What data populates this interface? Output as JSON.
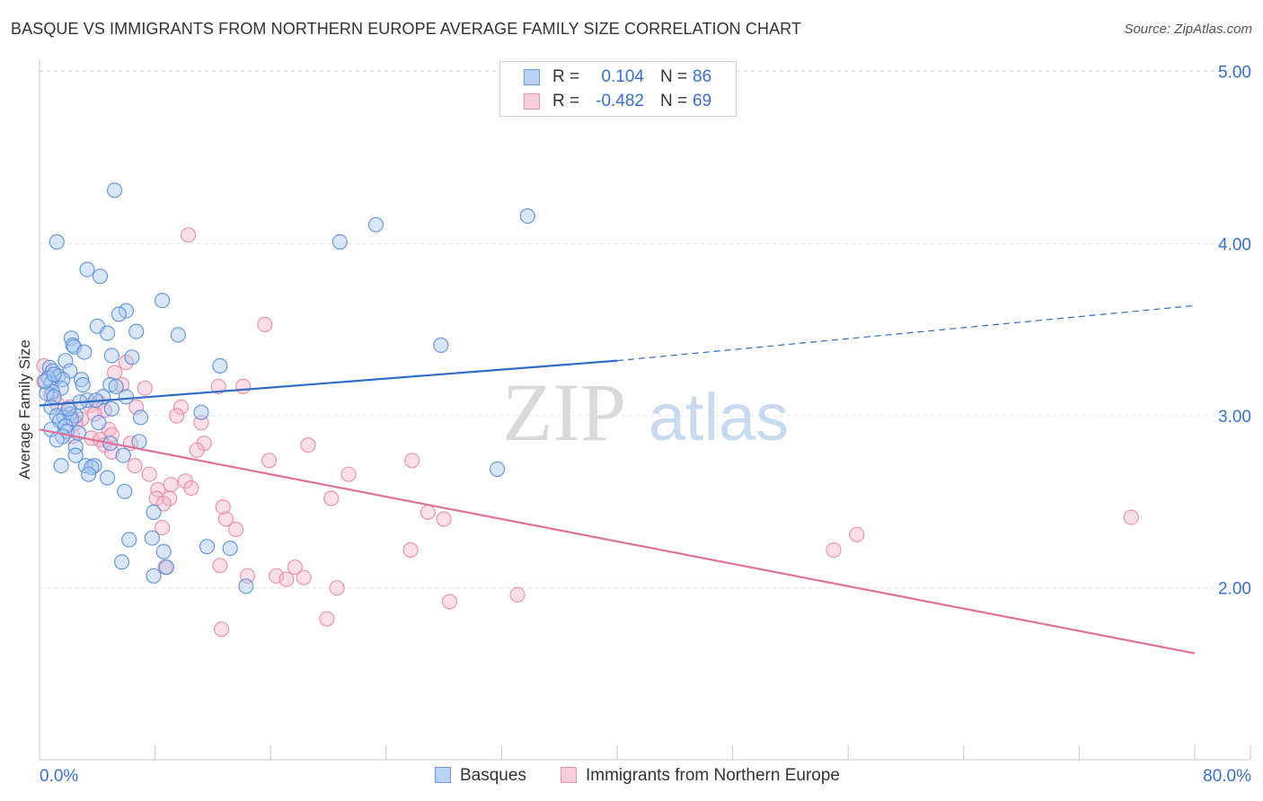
{
  "header": {
    "title": "BASQUE VS IMMIGRANTS FROM NORTHERN EUROPE AVERAGE FAMILY SIZE CORRELATION CHART",
    "source": "Source: ZipAtlas.com"
  },
  "watermark": {
    "zip": "ZIP",
    "atlas": "atlas"
  },
  "colors": {
    "basques_fill": "#a8c8f0",
    "basques_stroke": "#5a8fd8",
    "basques_line": "#2e6cc7",
    "immigrants_fill": "#f5b8cc",
    "immigrants_stroke": "#e88aa8",
    "immigrants_line": "#e0709a",
    "tick_label": "#3a6fd0",
    "grid": "#e2e2e2"
  },
  "legend_box": {
    "rows": [
      {
        "r_label": "R =",
        "r_value": "0.104",
        "n_label": "N =",
        "n_value": "86"
      },
      {
        "r_label": "R =",
        "r_value": "-0.482",
        "n_label": "N =",
        "n_value": "69"
      }
    ]
  },
  "bottom_legend": [
    "Basques",
    "Immigrants from Northern Europe"
  ],
  "chart_data": {
    "type": "scatter",
    "title": "BASQUE VS IMMIGRANTS FROM NORTHERN EUROPE AVERAGE FAMILY SIZE CORRELATION CHART",
    "xlabel": "",
    "ylabel": "Average Family Size",
    "xlim": [
      0,
      80
    ],
    "ylim": [
      1.0,
      5.15
    ],
    "x_tick_labels": [
      {
        "value": 0,
        "label": "0.0%"
      },
      {
        "value": 80,
        "label": "80.0%"
      }
    ],
    "y_ticks": [
      {
        "value": 2.0,
        "label": "2.00"
      },
      {
        "value": 3.0,
        "label": "3.00"
      },
      {
        "value": 4.0,
        "label": "4.00"
      },
      {
        "value": 5.0,
        "label": "5.00"
      }
    ],
    "x_minor_ticks": [
      0,
      8,
      16,
      24,
      32,
      40,
      48,
      56,
      64,
      72,
      80
    ],
    "series": [
      {
        "name": "Basques",
        "R": 0.104,
        "N": 86,
        "trend": {
          "x0": 0,
          "y0": 3.06,
          "x1": 40,
          "y1": 3.32,
          "dashed_to_x": 80,
          "dashed_to_y": 3.64
        },
        "points": [
          [
            5.2,
            4.31
          ],
          [
            1.2,
            4.01
          ],
          [
            20.8,
            4.01
          ],
          [
            23.3,
            4.11
          ],
          [
            33.8,
            4.16
          ],
          [
            3.3,
            3.85
          ],
          [
            4.2,
            3.81
          ],
          [
            8.5,
            3.67
          ],
          [
            6.0,
            3.61
          ],
          [
            5.5,
            3.59
          ],
          [
            4.0,
            3.52
          ],
          [
            4.7,
            3.48
          ],
          [
            6.7,
            3.49
          ],
          [
            9.6,
            3.47
          ],
          [
            2.2,
            3.45
          ],
          [
            2.3,
            3.41
          ],
          [
            2.4,
            3.4
          ],
          [
            27.8,
            3.41
          ],
          [
            3.1,
            3.37
          ],
          [
            5.0,
            3.35
          ],
          [
            6.4,
            3.34
          ],
          [
            1.8,
            3.32
          ],
          [
            0.7,
            3.28
          ],
          [
            0.9,
            3.26
          ],
          [
            2.1,
            3.26
          ],
          [
            1.3,
            3.23
          ],
          [
            0.6,
            3.22
          ],
          [
            1.6,
            3.21
          ],
          [
            12.5,
            3.29
          ],
          [
            2.9,
            3.21
          ],
          [
            0.8,
            3.19
          ],
          [
            4.9,
            3.18
          ],
          [
            5.3,
            3.17
          ],
          [
            1.5,
            3.16
          ],
          [
            0.9,
            3.14
          ],
          [
            0.5,
            3.13
          ],
          [
            1.0,
            3.11
          ],
          [
            4.4,
            3.11
          ],
          [
            6.0,
            3.11
          ],
          [
            3.3,
            3.09
          ],
          [
            3.9,
            3.09
          ],
          [
            2.8,
            3.08
          ],
          [
            0.8,
            3.05
          ],
          [
            5.0,
            3.04
          ],
          [
            11.2,
            3.02
          ],
          [
            2.1,
            3.01
          ],
          [
            1.2,
            3.0
          ],
          [
            2.5,
            3.0
          ],
          [
            1.7,
            2.99
          ],
          [
            2.2,
            2.98
          ],
          [
            1.4,
            2.97
          ],
          [
            4.1,
            2.96
          ],
          [
            1.8,
            2.94
          ],
          [
            0.8,
            2.92
          ],
          [
            1.9,
            2.91
          ],
          [
            2.7,
            2.9
          ],
          [
            1.6,
            2.88
          ],
          [
            1.2,
            2.86
          ],
          [
            4.9,
            2.84
          ],
          [
            6.9,
            2.85
          ],
          [
            2.5,
            2.82
          ],
          [
            2.5,
            2.77
          ],
          [
            5.8,
            2.77
          ],
          [
            1.5,
            2.71
          ],
          [
            3.2,
            2.71
          ],
          [
            3.8,
            2.71
          ],
          [
            3.6,
            2.7
          ],
          [
            3.4,
            2.66
          ],
          [
            4.7,
            2.64
          ],
          [
            31.7,
            2.69
          ],
          [
            5.9,
            2.56
          ],
          [
            7.9,
            2.44
          ],
          [
            6.2,
            2.28
          ],
          [
            7.8,
            2.29
          ],
          [
            8.6,
            2.21
          ],
          [
            11.6,
            2.24
          ],
          [
            13.2,
            2.23
          ],
          [
            5.7,
            2.15
          ],
          [
            8.8,
            2.12
          ],
          [
            7.9,
            2.07
          ],
          [
            14.3,
            2.01
          ],
          [
            0.4,
            3.2
          ],
          [
            1.0,
            3.24
          ],
          [
            3.0,
            3.18
          ],
          [
            2.0,
            3.04
          ],
          [
            7.0,
            2.99
          ]
        ]
      },
      {
        "name": "Immigrants from Northern Europe",
        "R": -0.482,
        "N": 69,
        "trend": {
          "x0": 0,
          "y0": 2.92,
          "x1": 80,
          "y1": 1.62
        },
        "points": [
          [
            10.3,
            4.05
          ],
          [
            15.6,
            3.53
          ],
          [
            0.3,
            3.29
          ],
          [
            6.0,
            3.31
          ],
          [
            5.2,
            3.25
          ],
          [
            0.3,
            3.2
          ],
          [
            5.7,
            3.18
          ],
          [
            7.3,
            3.16
          ],
          [
            12.4,
            3.17
          ],
          [
            14.1,
            3.17
          ],
          [
            0.8,
            3.12
          ],
          [
            4.1,
            3.08
          ],
          [
            3.5,
            3.06
          ],
          [
            1.2,
            3.07
          ],
          [
            2.1,
            3.05
          ],
          [
            6.7,
            3.05
          ],
          [
            9.8,
            3.05
          ],
          [
            4.5,
            3.03
          ],
          [
            3.8,
            3.01
          ],
          [
            9.5,
            3.0
          ],
          [
            2.9,
            2.98
          ],
          [
            2.5,
            2.96
          ],
          [
            11.2,
            2.96
          ],
          [
            4.8,
            2.92
          ],
          [
            5.0,
            2.89
          ],
          [
            2.3,
            2.88
          ],
          [
            3.6,
            2.87
          ],
          [
            4.2,
            2.86
          ],
          [
            4.5,
            2.83
          ],
          [
            6.3,
            2.84
          ],
          [
            11.4,
            2.84
          ],
          [
            18.6,
            2.83
          ],
          [
            10.9,
            2.8
          ],
          [
            5.0,
            2.79
          ],
          [
            15.9,
            2.74
          ],
          [
            25.8,
            2.74
          ],
          [
            6.6,
            2.71
          ],
          [
            7.6,
            2.66
          ],
          [
            21.4,
            2.66
          ],
          [
            10.1,
            2.62
          ],
          [
            9.1,
            2.6
          ],
          [
            10.5,
            2.58
          ],
          [
            8.2,
            2.57
          ],
          [
            9.0,
            2.52
          ],
          [
            8.1,
            2.52
          ],
          [
            20.2,
            2.52
          ],
          [
            8.6,
            2.49
          ],
          [
            12.7,
            2.47
          ],
          [
            26.9,
            2.44
          ],
          [
            12.9,
            2.4
          ],
          [
            28.0,
            2.4
          ],
          [
            75.6,
            2.41
          ],
          [
            8.5,
            2.35
          ],
          [
            13.6,
            2.34
          ],
          [
            56.6,
            2.31
          ],
          [
            25.7,
            2.22
          ],
          [
            55.0,
            2.22
          ],
          [
            12.5,
            2.13
          ],
          [
            17.7,
            2.12
          ],
          [
            8.7,
            2.12
          ],
          [
            14.4,
            2.07
          ],
          [
            16.4,
            2.07
          ],
          [
            17.1,
            2.05
          ],
          [
            18.3,
            2.06
          ],
          [
            20.6,
            2.0
          ],
          [
            33.1,
            1.96
          ],
          [
            28.4,
            1.92
          ],
          [
            19.9,
            1.82
          ],
          [
            12.6,
            1.76
          ]
        ]
      }
    ]
  }
}
